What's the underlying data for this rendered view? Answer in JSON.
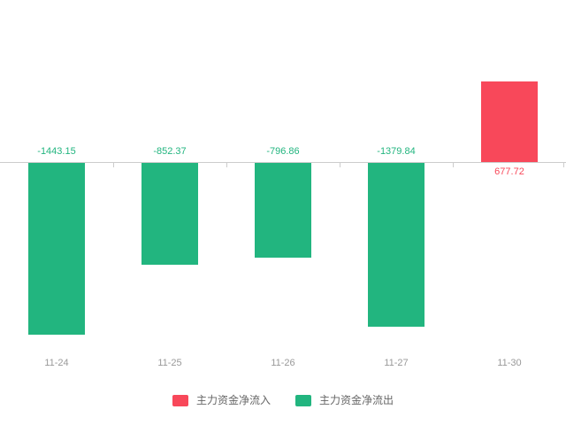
{
  "chart_data": {
    "type": "bar",
    "title": "",
    "xlabel": "",
    "ylabel": "",
    "categories": [
      "11-24",
      "11-25",
      "11-26",
      "11-27",
      "11-30"
    ],
    "values": [
      -1443.15,
      -852.37,
      -796.86,
      -1379.84,
      677.72
    ],
    "value_labels": [
      "-1443.15",
      "-852.37",
      "-796.86",
      "-1379.84",
      "677.72"
    ],
    "series": [
      {
        "name": "主力资金净流入",
        "values": [
          null,
          null,
          null,
          null,
          677.72
        ]
      },
      {
        "name": "主力资金净流出",
        "values": [
          -1443.15,
          -852.37,
          -796.86,
          -1379.84,
          null
        ]
      }
    ],
    "ylim": [
      -1550,
      730
    ],
    "grid": false,
    "legend_position": "bottom",
    "colors": {
      "positive": "#f8485a",
      "negative": "#22b57f",
      "axis_line": "#cccccc",
      "date_label": "#999999",
      "legend_text": "#666666"
    },
    "legend": [
      {
        "label": "主力资金净流入",
        "color": "#f8485a"
      },
      {
        "label": "主力资金净流出",
        "color": "#22b57f"
      }
    ]
  }
}
